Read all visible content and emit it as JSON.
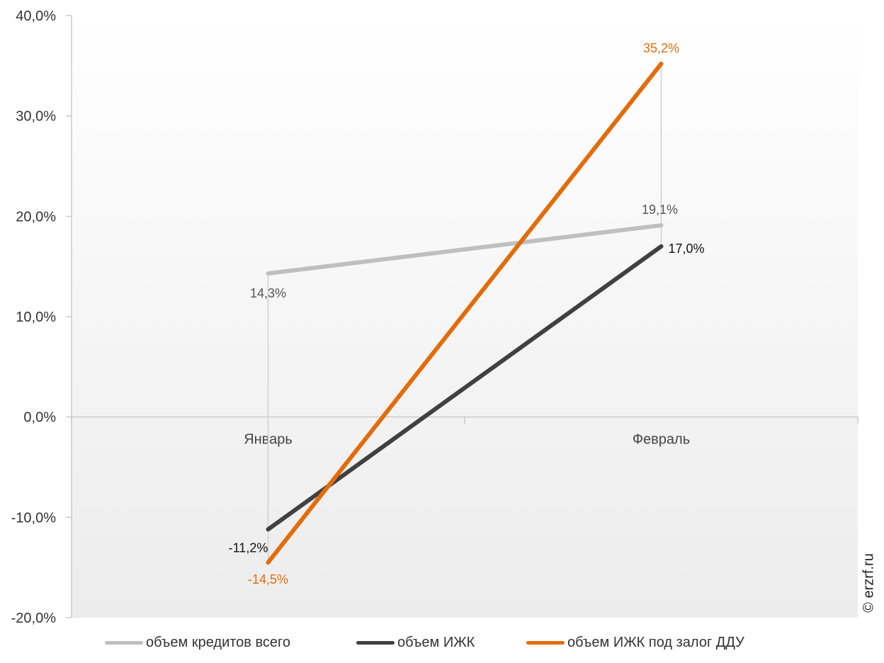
{
  "chart_data": {
    "type": "line",
    "categories": [
      "Январь",
      "Февраль"
    ],
    "series": [
      {
        "name": "объем кредитов всего",
        "values": [
          14.3,
          19.1
        ],
        "labels": [
          "14,3%",
          "19,1%"
        ],
        "color": "#bfbfbf",
        "label_color": "#555555"
      },
      {
        "name": "объем ИЖК",
        "values": [
          -11.2,
          17.0
        ],
        "labels": [
          "-11,2%",
          "17,0%"
        ],
        "color": "#404040",
        "label_color": "#111111"
      },
      {
        "name": "объем ИЖК под залог ДДУ",
        "values": [
          -14.5,
          35.2
        ],
        "labels": [
          "-14,5%",
          "35,2%"
        ],
        "color": "#e36c0a",
        "label_color": "#e36c0a"
      }
    ],
    "ylim": [
      -20,
      40
    ],
    "yticks": [
      40,
      30,
      20,
      10,
      0,
      -10,
      -20
    ],
    "ytick_labels": [
      "40,0%",
      "30,0%",
      "20,0%",
      "10,0%",
      "0,0%",
      "-10,0%",
      "-20,0%"
    ],
    "legend_position": "bottom",
    "grid": false
  },
  "watermark": "© erzrf.ru"
}
